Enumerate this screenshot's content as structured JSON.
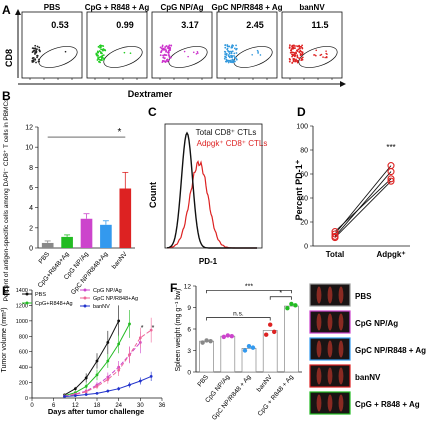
{
  "panel_letters": [
    "A",
    "B",
    "C",
    "D",
    "E",
    "F"
  ],
  "panel_a": {
    "groups": [
      {
        "label": "PBS",
        "percent": "0.53",
        "color": "#222222"
      },
      {
        "label": "CpG + R848 + Ag",
        "percent": "0.99",
        "color": "#22cc22"
      },
      {
        "label": "CpG NP/Ag",
        "percent": "3.17",
        "color": "#cc33cc"
      },
      {
        "label": "GpC NP/R848 + Ag",
        "percent": "2.45",
        "color": "#3399dd"
      },
      {
        "label": "banNV",
        "percent": "11.5",
        "color": "#dd2222"
      }
    ],
    "ylabel": "CD8",
    "xlabel": "Dextramer"
  },
  "chart_data": [
    {
      "panel": "B",
      "type": "bar",
      "ylabel": "Percent of antigen-specific cells among DAPI⁻ CD8⁺ T cells in PBMCs",
      "categories": [
        "PBS",
        "CpG+R848+Ag",
        "CpG NP/Ag",
        "GpC NP/R848+Ag",
        "banNV"
      ],
      "values": [
        0.5,
        1.1,
        2.9,
        2.3,
        5.9
      ],
      "errors": [
        0.2,
        0.2,
        0.5,
        0.4,
        1.6
      ],
      "colors": [
        "#888888",
        "#22bb22",
        "#cc44cc",
        "#3399ee",
        "#dd2222"
      ],
      "ylim": [
        0,
        12
      ],
      "yticks": [
        "0",
        "2",
        "4",
        "6",
        "8",
        "10",
        "12"
      ],
      "significance": "*"
    },
    {
      "panel": "C",
      "type": "line",
      "xlabel": "PD-1",
      "ylabel": "Count",
      "series": [
        {
          "name": "Total CD8⁺ CTLs",
          "color": "#111111"
        },
        {
          "name": "Adpgk⁺ CD8⁺ CTLs",
          "color": "#dd2222"
        }
      ]
    },
    {
      "panel": "D",
      "type": "scatter",
      "ylabel": "Percent PD-1⁺",
      "categories": [
        "Total",
        "Adpgk⁺"
      ],
      "pairs": [
        [
          10,
          67
        ],
        [
          8,
          62
        ],
        [
          12,
          56
        ],
        [
          7,
          54
        ]
      ],
      "ylim": [
        0,
        100
      ],
      "yticks": [
        "0",
        "20",
        "40",
        "60",
        "80",
        "100"
      ],
      "significance": "***"
    },
    {
      "panel": "E",
      "type": "line",
      "xlabel": "Days after tumor challenge",
      "ylabel": "Tumor volume (mm³)",
      "x": [
        9,
        12,
        15,
        18,
        21,
        24,
        27,
        30,
        33
      ],
      "xticks": [
        "0",
        "6",
        "12",
        "18",
        "24",
        "30",
        "36"
      ],
      "yticks": [
        "0",
        "200",
        "400",
        "600",
        "800",
        "1000",
        "1200",
        "1400"
      ],
      "xlim": [
        0,
        36
      ],
      "ylim": [
        0,
        1400
      ],
      "series": [
        {
          "name": "PBS",
          "color": "#111111",
          "dash": "",
          "values": [
            40,
            120,
            260,
            480,
            720,
            1000,
            null,
            null,
            null
          ],
          "errors": [
            10,
            25,
            60,
            100,
            150,
            200,
            null,
            null,
            null
          ]
        },
        {
          "name": "CpG+R848+Ag",
          "color": "#22bb22",
          "dash": "",
          "values": [
            30,
            70,
            150,
            300,
            480,
            700,
            960,
            null,
            null
          ],
          "errors": [
            8,
            15,
            40,
            70,
            90,
            120,
            180,
            null,
            null
          ]
        },
        {
          "name": "CpG NP/Ag",
          "color": "#cc44cc",
          "dash": "4,2",
          "values": [
            25,
            50,
            90,
            170,
            270,
            400,
            560,
            720,
            null
          ],
          "errors": [
            6,
            12,
            25,
            40,
            60,
            80,
            110,
            140,
            null
          ]
        },
        {
          "name": "GpC NP/R848+Ag",
          "color": "#ee6699",
          "dash": "4,2",
          "values": [
            25,
            45,
            80,
            150,
            240,
            360,
            560,
            780,
            880
          ],
          "errors": [
            6,
            10,
            20,
            35,
            55,
            75,
            100,
            130,
            160
          ]
        },
        {
          "name": "banNV",
          "color": "#2233cc",
          "dash": "",
          "values": [
            20,
            30,
            45,
            60,
            90,
            120,
            170,
            220,
            280
          ],
          "errors": [
            5,
            8,
            10,
            15,
            20,
            25,
            35,
            45,
            60
          ]
        }
      ],
      "significance": [
        "*",
        "*"
      ]
    },
    {
      "panel": "F",
      "type": "bar",
      "ylabel": "Spleen weight (mg g⁻¹ bw)",
      "categories": [
        "PBS",
        "CpG NP/Ag",
        "GpC NP/R848 + Ag",
        "banNV",
        "CpG + R848 + Ag"
      ],
      "values": [
        4.3,
        5.0,
        3.3,
        5.8,
        9.2
      ],
      "points": [
        [
          4.1,
          4.4,
          4.3
        ],
        [
          4.9,
          5.1,
          5.0
        ],
        [
          3.0,
          3.6,
          3.4
        ],
        [
          5.2,
          6.6,
          5.6
        ],
        [
          8.9,
          9.5,
          9.3
        ]
      ],
      "point_colors": [
        "#888888",
        "#cc44cc",
        "#3399ee",
        "#dd2222",
        "#22bb22"
      ],
      "ylim": [
        0,
        12
      ],
      "yticks": [
        "0",
        "3",
        "6",
        "9",
        "12"
      ],
      "significance": [
        "***",
        "n.s.",
        "*"
      ]
    }
  ],
  "spleen_labels": [
    {
      "label": "PBS",
      "border": "#999999"
    },
    {
      "label": "CpG NP/Ag",
      "border": "#cc44cc"
    },
    {
      "label": "GpC NP/R848 + Ag",
      "border": "#3399ee"
    },
    {
      "label": "banNV",
      "border": "#dd2222"
    },
    {
      "label": "CpG + R848 + Ag",
      "border": "#22bb22"
    }
  ]
}
